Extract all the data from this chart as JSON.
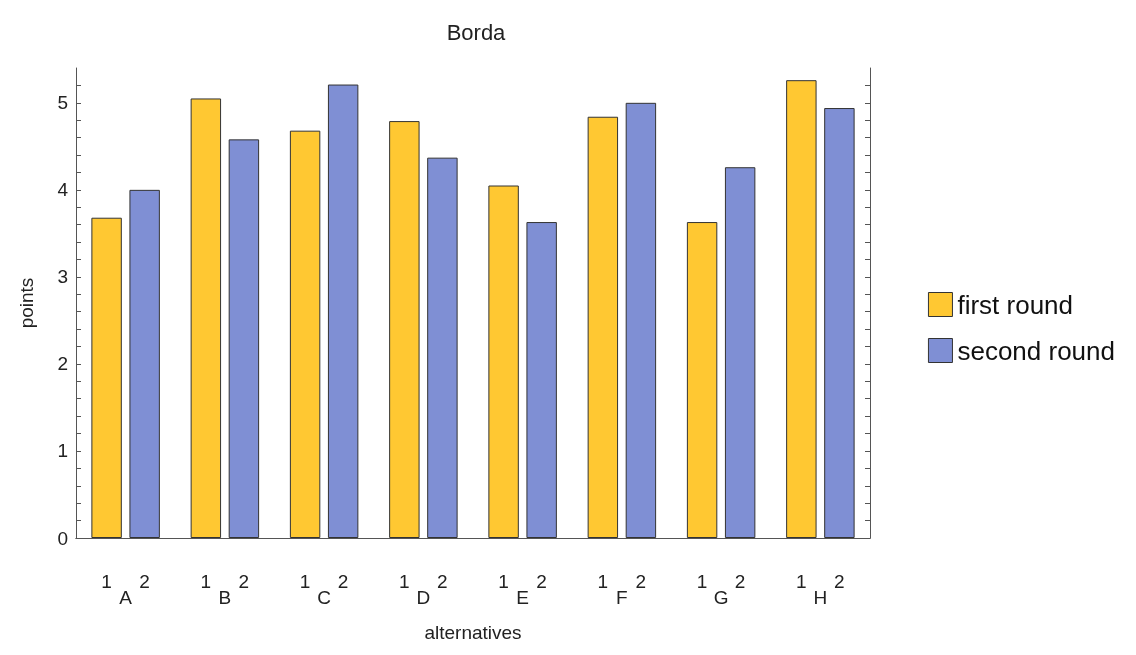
{
  "chart_data": {
    "type": "bar",
    "title": "Borda",
    "xlabel": "alternatives",
    "ylabel": "points",
    "categories": [
      "A",
      "B",
      "C",
      "D",
      "E",
      "F",
      "G",
      "H"
    ],
    "series": [
      {
        "name": "first round",
        "color": "#ffc832",
        "values": [
          3.68,
          5.05,
          4.68,
          4.79,
          4.05,
          4.84,
          3.63,
          5.26
        ]
      },
      {
        "name": "second round",
        "color": "#7f8fd4",
        "values": [
          4.0,
          4.58,
          5.21,
          4.37,
          3.63,
          5.0,
          4.26,
          4.94
        ]
      }
    ],
    "ylim": [
      0,
      5.4
    ],
    "yticks": [
      0,
      {
        "value": 0.2,
        "label": null
      },
      {
        "value": 0.4,
        "label": null
      },
      {
        "value": 0.6,
        "label": null
      },
      {
        "value": 0.8,
        "label": null
      },
      1,
      {
        "value": 1.2,
        "label": null
      },
      {
        "value": 1.4,
        "label": null
      },
      {
        "value": 1.6,
        "label": null
      },
      {
        "value": 1.8,
        "label": null
      },
      2,
      {
        "value": 2.2,
        "label": null
      },
      {
        "value": 2.4,
        "label": null
      },
      {
        "value": 2.6,
        "label": null
      },
      {
        "value": 2.8,
        "label": null
      },
      3,
      {
        "value": 3.2,
        "label": null
      },
      {
        "value": 3.4,
        "label": null
      },
      {
        "value": 3.6,
        "label": null
      },
      {
        "value": 3.8,
        "label": null
      },
      4,
      {
        "value": 4.2,
        "label": null
      },
      {
        "value": 4.4,
        "label": null
      },
      {
        "value": 4.6,
        "label": null
      },
      {
        "value": 4.8,
        "label": null
      },
      5,
      {
        "value": 5.2,
        "label": null
      }
    ],
    "legend": "right",
    "grid": false,
    "annotations": [
      "1",
      "2",
      "1",
      "2",
      "1",
      "2",
      "1",
      "2",
      "1",
      "2",
      "1",
      "2",
      "1",
      "2",
      "1",
      "2"
    ]
  }
}
